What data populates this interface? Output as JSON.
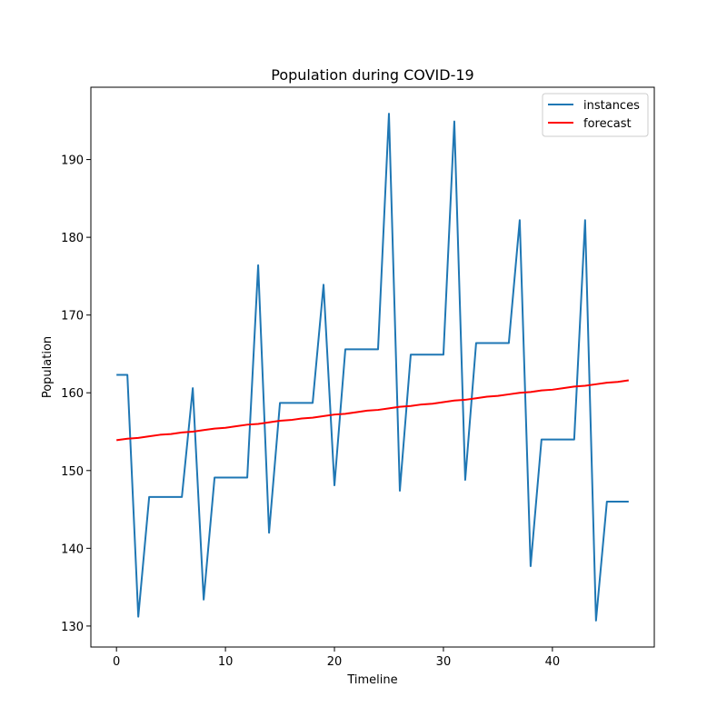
{
  "chart_data": {
    "type": "line",
    "title": "Population during COVID-19",
    "xlabel": "Timeline",
    "ylabel": "Population",
    "xlim": [
      -2.35,
      49.35
    ],
    "ylim": [
      127.3,
      199.3
    ],
    "xticks": [
      0,
      10,
      20,
      30,
      40
    ],
    "yticks": [
      130,
      140,
      150,
      160,
      170,
      180,
      190
    ],
    "grid": false,
    "legend_position": "top-right",
    "x": [
      0,
      1,
      2,
      3,
      4,
      5,
      6,
      7,
      8,
      9,
      10,
      11,
      12,
      13,
      14,
      15,
      16,
      17,
      18,
      19,
      20,
      21,
      22,
      23,
      24,
      25,
      26,
      27,
      28,
      29,
      30,
      31,
      32,
      33,
      34,
      35,
      36,
      37,
      38,
      39,
      40,
      41,
      42,
      43,
      44,
      45,
      46,
      47
    ],
    "series": [
      {
        "name": "instances",
        "color": "#1f77b4",
        "values": [
          162.3,
          162.3,
          131.2,
          146.6,
          146.6,
          146.6,
          146.6,
          160.6,
          133.4,
          149.1,
          149.1,
          149.1,
          149.1,
          176.4,
          142.0,
          158.7,
          158.7,
          158.7,
          158.7,
          173.9,
          148.1,
          165.6,
          165.6,
          165.6,
          165.6,
          195.9,
          147.4,
          164.9,
          164.9,
          164.9,
          164.9,
          194.9,
          148.8,
          166.4,
          166.4,
          166.4,
          166.4,
          182.2,
          137.7,
          154.0,
          154.0,
          154.0,
          154.0,
          182.2,
          130.7,
          146.0,
          146.0,
          146.0
        ]
      },
      {
        "name": "forecast",
        "color": "#ff0000",
        "values": [
          153.9,
          154.1,
          154.2,
          154.4,
          154.6,
          154.7,
          154.9,
          155.0,
          155.2,
          155.4,
          155.5,
          155.7,
          155.9,
          156.0,
          156.2,
          156.4,
          156.5,
          156.7,
          156.8,
          157.0,
          157.2,
          157.3,
          157.5,
          157.7,
          157.8,
          158.0,
          158.2,
          158.3,
          158.5,
          158.6,
          158.8,
          159.0,
          159.1,
          159.3,
          159.5,
          159.6,
          159.8,
          160.0,
          160.1,
          160.3,
          160.4,
          160.6,
          160.8,
          160.9,
          161.1,
          161.3,
          161.4,
          161.6
        ]
      }
    ]
  }
}
